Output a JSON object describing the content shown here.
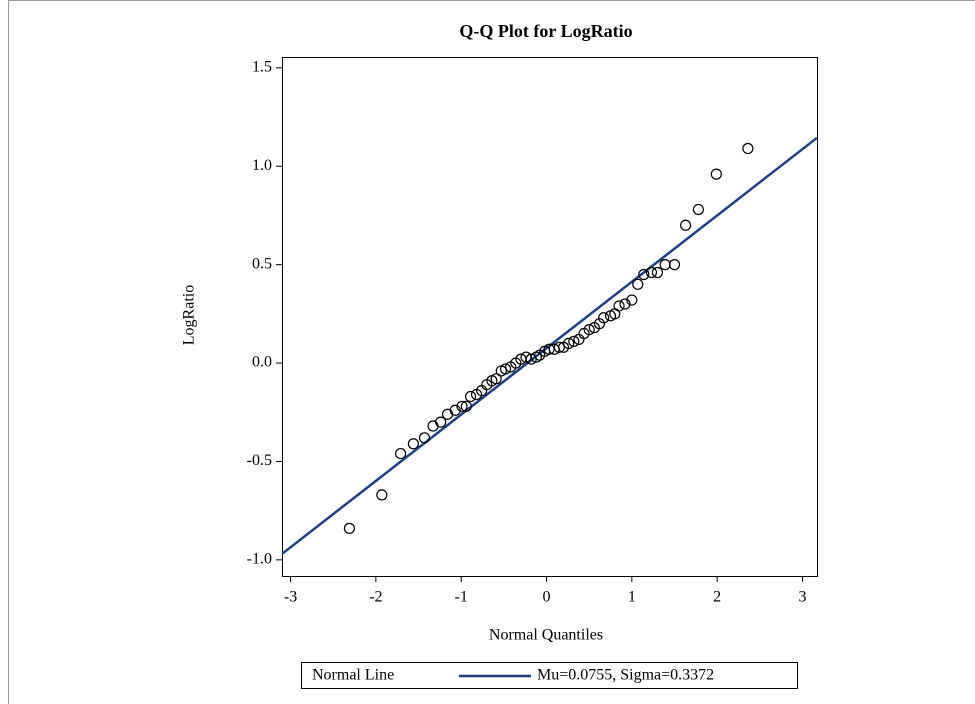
{
  "chart_data": {
    "type": "scatter",
    "title": "Q-Q Plot for LogRatio",
    "x_label": "Normal Quantiles",
    "y_label": "LogRatio",
    "x": [
      -2.31,
      -1.93,
      -1.71,
      -1.56,
      -1.43,
      -1.33,
      -1.24,
      -1.16,
      -1.07,
      -0.99,
      -0.94,
      -0.89,
      -0.82,
      -0.76,
      -0.7,
      -0.64,
      -0.59,
      -0.53,
      -0.48,
      -0.42,
      -0.36,
      -0.3,
      -0.24,
      -0.18,
      -0.12,
      -0.08,
      -0.02,
      0.03,
      0.09,
      0.15,
      0.2,
      0.26,
      0.32,
      0.38,
      0.44,
      0.5,
      0.56,
      0.62,
      0.67,
      0.75,
      0.8,
      0.85,
      0.92,
      1.0,
      1.07,
      1.14,
      1.23,
      1.3,
      1.39,
      1.5,
      1.63,
      1.78,
      1.99,
      2.36
    ],
    "values": [
      -0.84,
      -0.67,
      -0.46,
      -0.41,
      -0.38,
      -0.32,
      -0.3,
      -0.26,
      -0.24,
      -0.22,
      -0.22,
      -0.17,
      -0.16,
      -0.14,
      -0.11,
      -0.09,
      -0.08,
      -0.04,
      -0.03,
      -0.02,
      0.0,
      0.02,
      0.03,
      0.02,
      0.03,
      0.04,
      0.06,
      0.07,
      0.07,
      0.08,
      0.08,
      0.1,
      0.11,
      0.12,
      0.15,
      0.17,
      0.18,
      0.2,
      0.23,
      0.24,
      0.25,
      0.29,
      0.3,
      0.32,
      0.4,
      0.45,
      0.46,
      0.46,
      0.5,
      0.5,
      0.7,
      0.78,
      0.96,
      1.09
    ],
    "color": "#000000",
    "xlim": [
      -3.1,
      3.17
    ],
    "xticks": [
      -3,
      -2,
      -1,
      0,
      1,
      2,
      3
    ],
    "ylim": [
      -1.082,
      1.555
    ],
    "yticks": [
      {
        "value": -1.0,
        "label": "-1.0"
      },
      {
        "value": -0.5,
        "label": "-0.5"
      },
      {
        "value": 0.0,
        "label": "0.0"
      },
      {
        "value": 0.5,
        "label": "0.5"
      },
      {
        "value": 1.0,
        "label": "1.0"
      },
      {
        "value": 1.5,
        "label": "1.5"
      }
    ],
    "normal_line": {
      "name": "Normal Line",
      "label": "Mu=0.0755, Sigma=0.3372",
      "mu": 0.0755,
      "sigma": 0.3372,
      "color": "#1f3f7f"
    }
  }
}
